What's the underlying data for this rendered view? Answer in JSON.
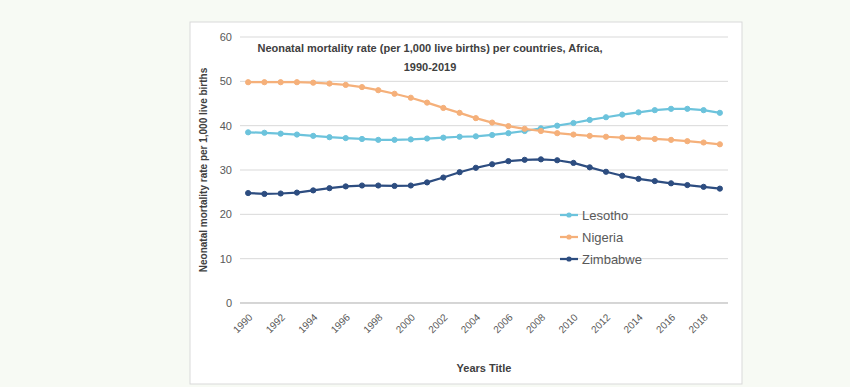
{
  "chart_data": {
    "type": "line",
    "title": "Neonatal mortality rate (per 1,000 live births) per countries, Africa, 1990-2019",
    "x_label": "Years Title",
    "y_label": "Neonatal mortality rate per 1,000 live births",
    "categories": [
      "1990",
      null,
      "1992",
      null,
      "1994",
      null,
      "1996",
      null,
      "1998",
      null,
      "2000",
      null,
      "2002",
      null,
      "2004",
      null,
      "2006",
      null,
      "2008",
      null,
      "2010",
      null,
      "2012",
      null,
      "2014",
      null,
      "2016",
      null,
      "2018",
      null
    ],
    "series": [
      {
        "name": "Lesotho",
        "color": "#6cc3dc",
        "marker": "circle",
        "values": [
          38.5,
          38.4,
          38.2,
          38.0,
          37.7,
          37.4,
          37.2,
          37.0,
          36.8,
          36.8,
          36.9,
          37.1,
          37.3,
          37.5,
          37.6,
          37.9,
          38.3,
          38.8,
          39.4,
          40.0,
          40.6,
          41.3,
          41.9,
          42.5,
          43.0,
          43.5,
          43.8,
          43.8,
          43.5,
          42.9
        ]
      },
      {
        "name": "Nigeria",
        "color": "#f5b07a",
        "marker": "circle",
        "values": [
          49.8,
          49.8,
          49.8,
          49.8,
          49.7,
          49.5,
          49.2,
          48.7,
          48.0,
          47.2,
          46.3,
          45.2,
          44.0,
          42.9,
          41.7,
          40.7,
          39.9,
          39.3,
          38.8,
          38.3,
          38.0,
          37.7,
          37.5,
          37.3,
          37.2,
          37.0,
          36.8,
          36.5,
          36.2,
          35.8
        ]
      },
      {
        "name": "Zimbabwe",
        "color": "#2d4d80",
        "marker": "circle",
        "values": [
          24.8,
          24.6,
          24.7,
          24.9,
          25.4,
          25.9,
          26.3,
          26.5,
          26.5,
          26.4,
          26.5,
          27.2,
          28.3,
          29.5,
          30.5,
          31.3,
          32.0,
          32.3,
          32.4,
          32.2,
          31.6,
          30.6,
          29.6,
          28.7,
          28.0,
          27.5,
          27.0,
          26.6,
          26.2,
          25.8
        ]
      }
    ],
    "ylim": [
      0,
      60
    ],
    "yticks": [
      0,
      10,
      20,
      30,
      40,
      50,
      60
    ],
    "grid": true,
    "legend": "right"
  }
}
